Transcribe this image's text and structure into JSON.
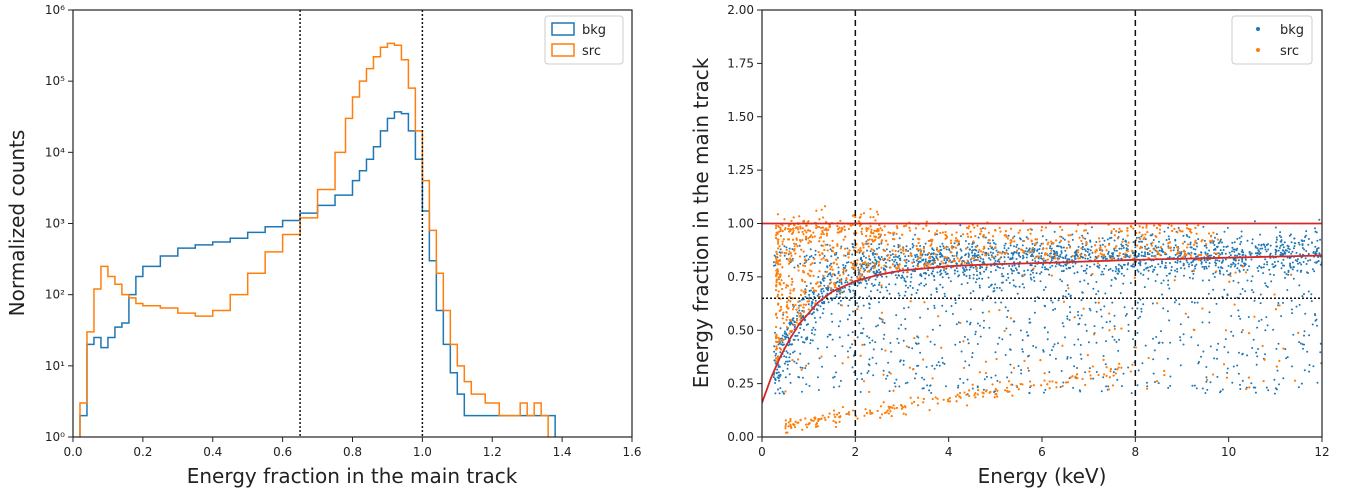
{
  "chart_data": [
    {
      "type": "histogram",
      "xlabel": "Energy fraction in the main track",
      "ylabel": "Normalized counts",
      "xlim": [
        0.0,
        1.6
      ],
      "ylim": [
        1,
        1000000
      ],
      "y_scale": "log",
      "x_ticks": [
        "0.0",
        "0.2",
        "0.4",
        "0.6",
        "0.8",
        "1.0",
        "1.2",
        "1.4",
        "1.6"
      ],
      "y_ticks": [
        "10⁰",
        "10¹",
        "10²",
        "10³",
        "10⁴",
        "10⁵",
        "10⁶"
      ],
      "legend": {
        "placement": "upper right",
        "entries": [
          "bkg",
          "src"
        ]
      },
      "vlines": [
        0.65,
        1.0
      ],
      "series": [
        {
          "name": "bkg",
          "color": "#1f77b4",
          "x": [
            0.02,
            0.04,
            0.06,
            0.08,
            0.1,
            0.12,
            0.14,
            0.16,
            0.18,
            0.2,
            0.25,
            0.3,
            0.35,
            0.4,
            0.45,
            0.5,
            0.55,
            0.6,
            0.65,
            0.7,
            0.75,
            0.8,
            0.82,
            0.84,
            0.86,
            0.88,
            0.9,
            0.92,
            0.94,
            0.96,
            0.98,
            1.0,
            1.02,
            1.04,
            1.06,
            1.08,
            1.1,
            1.12,
            1.16,
            1.2,
            1.24,
            1.3,
            1.36
          ],
          "values": [
            2,
            20,
            25,
            18,
            25,
            35,
            40,
            100,
            180,
            250,
            350,
            450,
            500,
            550,
            620,
            750,
            900,
            1100,
            1400,
            1800,
            2500,
            4000,
            5500,
            8000,
            12000,
            20000,
            30000,
            37000,
            35000,
            20000,
            8000,
            1500,
            300,
            60,
            20,
            8,
            4,
            2,
            2,
            2,
            2,
            2,
            2
          ]
        },
        {
          "name": "src",
          "color": "#ff7f0e",
          "x": [
            0.02,
            0.04,
            0.06,
            0.08,
            0.1,
            0.12,
            0.14,
            0.16,
            0.18,
            0.2,
            0.25,
            0.3,
            0.35,
            0.4,
            0.45,
            0.5,
            0.55,
            0.6,
            0.65,
            0.7,
            0.75,
            0.78,
            0.8,
            0.82,
            0.84,
            0.86,
            0.88,
            0.9,
            0.92,
            0.94,
            0.96,
            0.98,
            1.0,
            1.02,
            1.04,
            1.06,
            1.08,
            1.1,
            1.12,
            1.14,
            1.16,
            1.18,
            1.2,
            1.22,
            1.24,
            1.26,
            1.28,
            1.3,
            1.32,
            1.34
          ],
          "values": [
            3,
            30,
            120,
            250,
            180,
            140,
            100,
            90,
            75,
            70,
            65,
            55,
            50,
            60,
            100,
            200,
            400,
            700,
            1200,
            3000,
            10000,
            30000,
            60000,
            100000,
            150000,
            220000,
            300000,
            340000,
            320000,
            200000,
            80000,
            20000,
            4000,
            800,
            200,
            60,
            20,
            10,
            6,
            4,
            4,
            3,
            3,
            2,
            2,
            2,
            3,
            2,
            3,
            2
          ]
        }
      ]
    },
    {
      "type": "scatter",
      "xlabel": "Energy (keV)",
      "ylabel": "Energy fraction in the main track",
      "xlim": [
        0,
        12
      ],
      "ylim": [
        0.0,
        2.0
      ],
      "x_ticks": [
        "0",
        "2",
        "4",
        "6",
        "8",
        "10",
        "12"
      ],
      "y_ticks": [
        "0.00",
        "0.25",
        "0.50",
        "0.75",
        "1.00",
        "1.25",
        "1.50",
        "1.75",
        "2.00"
      ],
      "legend": {
        "placement": "upper right",
        "entries": [
          "bkg",
          "src"
        ]
      },
      "vlines": [
        2,
        8
      ],
      "hline_dotted": 0.65,
      "red_line": 1.0,
      "red_curve": {
        "x": [
          0.0,
          0.2,
          0.4,
          0.6,
          0.8,
          1.0,
          1.2,
          1.5,
          2.0,
          2.5,
          3.0,
          4.0,
          5.0,
          6.0,
          8.0,
          10.0,
          12.0
        ],
        "y": [
          0.16,
          0.28,
          0.38,
          0.46,
          0.53,
          0.58,
          0.63,
          0.68,
          0.73,
          0.76,
          0.78,
          0.8,
          0.81,
          0.815,
          0.83,
          0.84,
          0.85
        ]
      },
      "series": [
        {
          "name": "bkg",
          "color": "#1f77b4"
        },
        {
          "name": "src",
          "color": "#ff7f0e"
        }
      ]
    }
  ]
}
